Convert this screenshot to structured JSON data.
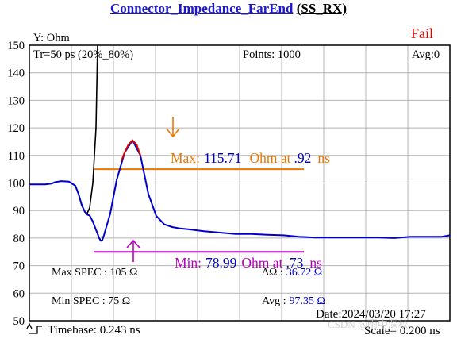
{
  "header": {
    "title": "Connector_Impedance_FarEnd",
    "subtitle": "(SS_RX)",
    "status": "Fail"
  },
  "info": {
    "y_unit": "Y: Ohm",
    "rise_time": "Tr=50  ps (20%_80%)",
    "points": "Points: 1000",
    "averaging": "Avg:0",
    "timebase": "Timebase: 0.243  ns",
    "scale": "Scale=  0.200 ns",
    "date": "Date:2024/03/20 17:27",
    "watermark": "CSDN @雨中深秋"
  },
  "markers": {
    "max_label": "Max:",
    "max_value": "115.71",
    "max_unit": "Ohm at",
    "max_time": ".92",
    "max_time_unit": "ns",
    "min_label": "Min:",
    "min_value": "78.99",
    "min_unit": "Ohm at",
    "min_time": ".73",
    "min_time_unit": "ns"
  },
  "spec": {
    "max_spec_label": "Max SPEC : 105 Ω",
    "min_spec_label": "Min  SPEC : 75  Ω",
    "delta_label": "ΔΩ :",
    "delta_value": "36.72 Ω",
    "avg_label": "Avg :",
    "avg_value": "97.35 Ω"
  },
  "colors": {
    "impedance": "#0000cc",
    "peak": "#dd0000",
    "reference": "#000000",
    "max_line": "#ee7700",
    "min_line": "#bb00bb",
    "fail": "#dd0000",
    "grid": "#b4b4b4"
  },
  "chart_data": {
    "type": "line",
    "ylim": [
      50,
      150
    ],
    "yticks": [
      50,
      60,
      70,
      80,
      90,
      100,
      110,
      120,
      130,
      140,
      150
    ],
    "grid": true,
    "series": [
      {
        "role": "impedance",
        "x": [
          0,
          0.1,
          0.2,
          0.28,
          0.3,
          0.32,
          0.36,
          0.4,
          0.5,
          0.58,
          0.62,
          0.66,
          0.7,
          0.73,
          0.76,
          0.8,
          0.84,
          0.88,
          0.9,
          0.92,
          0.94,
          0.98,
          1.02,
          1.06,
          1.1,
          1.2,
          1.3,
          1.4,
          1.5,
          1.6,
          1.7,
          1.8,
          1.9,
          2.0,
          2.2,
          2.4,
          2.6,
          2.8,
          3.0,
          3.2,
          3.4,
          3.6,
          3.8,
          4.0,
          4.2,
          4.4,
          4.6,
          4.8,
          5.0,
          5.2,
          5.3
        ],
        "y": [
          99.5,
          99.5,
          99.5,
          99.8,
          100,
          100.3,
          100.5,
          100.7,
          100.5,
          99,
          96,
          92,
          89.5,
          88.5,
          88.2,
          86,
          83,
          80,
          79,
          79.3,
          81,
          85,
          89,
          95,
          101,
          111,
          115.5,
          110,
          96,
          88,
          85,
          84,
          83.5,
          83.2,
          82.5,
          82,
          81.5,
          81.5,
          81.2,
          81,
          80.5,
          80.2,
          80.2,
          80.2,
          80.2,
          80.2,
          80,
          80.5,
          80.5,
          80.5,
          81
        ]
      },
      {
        "role": "peak",
        "x": [
          1.16,
          1.2,
          1.25,
          1.3,
          1.35,
          1.4
        ],
        "y": [
          108,
          111,
          114,
          115.5,
          114,
          110
        ]
      },
      {
        "role": "reference",
        "x": [
          0.58,
          0.62,
          0.66,
          0.7,
          0.73,
          0.76,
          0.8,
          0.84,
          0.86
        ],
        "y": [
          99,
          96,
          92,
          89.5,
          89,
          91,
          100,
          120,
          150
        ]
      }
    ]
  }
}
